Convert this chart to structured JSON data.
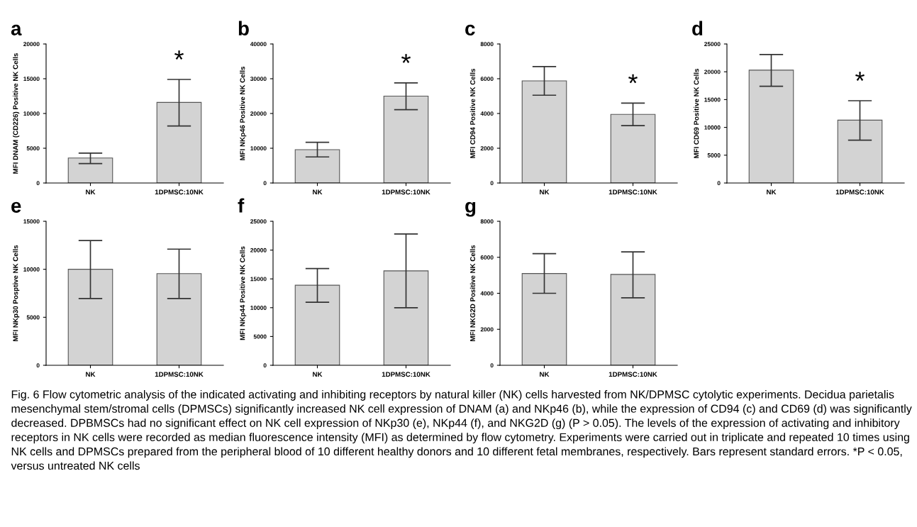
{
  "chart_data": [
    {
      "type": "bar",
      "title": "a",
      "ylabel": "MFI DNAM (CD226) Positive NK Cells",
      "categories": [
        "NK",
        "1DPMSC:10NK"
      ],
      "values": [
        3600,
        11600
      ],
      "errors": [
        [
          2800,
          4300
        ],
        [
          8200,
          14900
        ]
      ],
      "color": "#d3d3d3",
      "ylim": [
        0,
        20000
      ],
      "yticks": [
        0,
        5000,
        10000,
        15000,
        20000
      ],
      "grid": false,
      "legend": false,
      "annotations": [
        "*",
        "Fig. 6 Flow cytometric analysis of the indicated activating and inhibiting receptors by natural killer (NK) cells harvested from NK/DPMSC cytolytic experiments. Decidua parietalis mesenchymal stem/stromal cells (DPMSCs) significantly increased NK cell expression of DNAM (a) and NKp46 (b), while the expression of CD94 (c) and CD69 (d) was significantly decreased. DPBMSCs had no significant effect on NK cell expression of NKp30 (e), NKp44 (f), and NKG2D (g) (P > 0.05). The levels of the expression of activating and inhibitory receptors in NK cells were recorded as median fluorescence intensity (MFI) as determined by flow cytometry. Experiments were carried out in triplicate and repeated 10 times using NK cells and DPMSCs prepared from the peripheral blood of 10 different healthy donors and 10 different fetal membranes, respectively. Bars represent standard errors. *P < 0.05, versus untreated NK cells"
      ]
    },
    {
      "type": "bar",
      "title": "b",
      "ylabel": "MFI NKp46 Positive NK Cells",
      "categories": [
        "NK",
        "1DPMSC:10NK"
      ],
      "values": [
        9600,
        25000
      ],
      "errors": [
        [
          7500,
          11700
        ],
        [
          21100,
          28800
        ]
      ],
      "color": "#d3d3d3",
      "ylim": [
        0,
        40000
      ],
      "yticks": [
        0,
        10000,
        20000,
        30000,
        40000
      ],
      "grid": false,
      "legend": false,
      "annotations": [
        "*"
      ]
    },
    {
      "type": "bar",
      "title": "c",
      "ylabel": "MFI CD94 Positive NK Cells",
      "categories": [
        "NK",
        "1DPMSC:10NK"
      ],
      "values": [
        5880,
        3950
      ],
      "errors": [
        [
          5050,
          6700
        ],
        [
          3300,
          4600
        ]
      ],
      "color": "#d3d3d3",
      "ylim": [
        0,
        8000
      ],
      "yticks": [
        0,
        2000,
        4000,
        6000,
        8000
      ],
      "grid": false,
      "legend": false,
      "annotations": [
        "*"
      ]
    },
    {
      "type": "bar",
      "title": "d",
      "ylabel": "MFI CD69 Positive NK Cells",
      "categories": [
        "NK",
        "1DPMSC:10NK"
      ],
      "values": [
        20300,
        11300
      ],
      "errors": [
        [
          17400,
          23100
        ],
        [
          7700,
          14800
        ]
      ],
      "color": "#d3d3d3",
      "ylim": [
        0,
        25000
      ],
      "yticks": [
        0,
        5000,
        10000,
        15000,
        20000,
        25000
      ],
      "grid": false,
      "legend": false,
      "annotations": [
        "*"
      ]
    },
    {
      "type": "bar",
      "title": "e",
      "ylabel": "MFI NKp30 Posptive NK Cells",
      "categories": [
        "NK",
        "1DPMSC:10NK"
      ],
      "values": [
        10000,
        9550
      ],
      "errors": [
        [
          6950,
          13000
        ],
        [
          6950,
          12100
        ]
      ],
      "color": "#d3d3d3",
      "ylim": [
        0,
        15000
      ],
      "yticks": [
        0,
        5000,
        10000,
        15000
      ],
      "grid": false,
      "legend": false
    },
    {
      "type": "bar",
      "title": "f",
      "ylabel": "MFI NKp44 Positive NK Cells",
      "categories": [
        "NK",
        "1DPMSC:10NK"
      ],
      "values": [
        13900,
        16400
      ],
      "errors": [
        [
          10950,
          16800
        ],
        [
          10000,
          22800
        ]
      ],
      "color": "#d3d3d3",
      "ylim": [
        0,
        25000
      ],
      "yticks": [
        0,
        5000,
        10000,
        15000,
        20000,
        25000
      ],
      "grid": false,
      "legend": false
    },
    {
      "type": "bar",
      "title": "g",
      "ylabel": "MFI NKG2D Positive NK Cells",
      "categories": [
        "NK",
        "1DPMSC:10NK"
      ],
      "values": [
        5100,
        5050
      ],
      "errors": [
        [
          4000,
          6200
        ],
        [
          3750,
          6300
        ]
      ],
      "color": "#d3d3d3",
      "ylim": [
        0,
        8000
      ],
      "yticks": [
        0,
        2000,
        4000,
        6000,
        8000
      ],
      "grid": false,
      "legend": false
    }
  ]
}
